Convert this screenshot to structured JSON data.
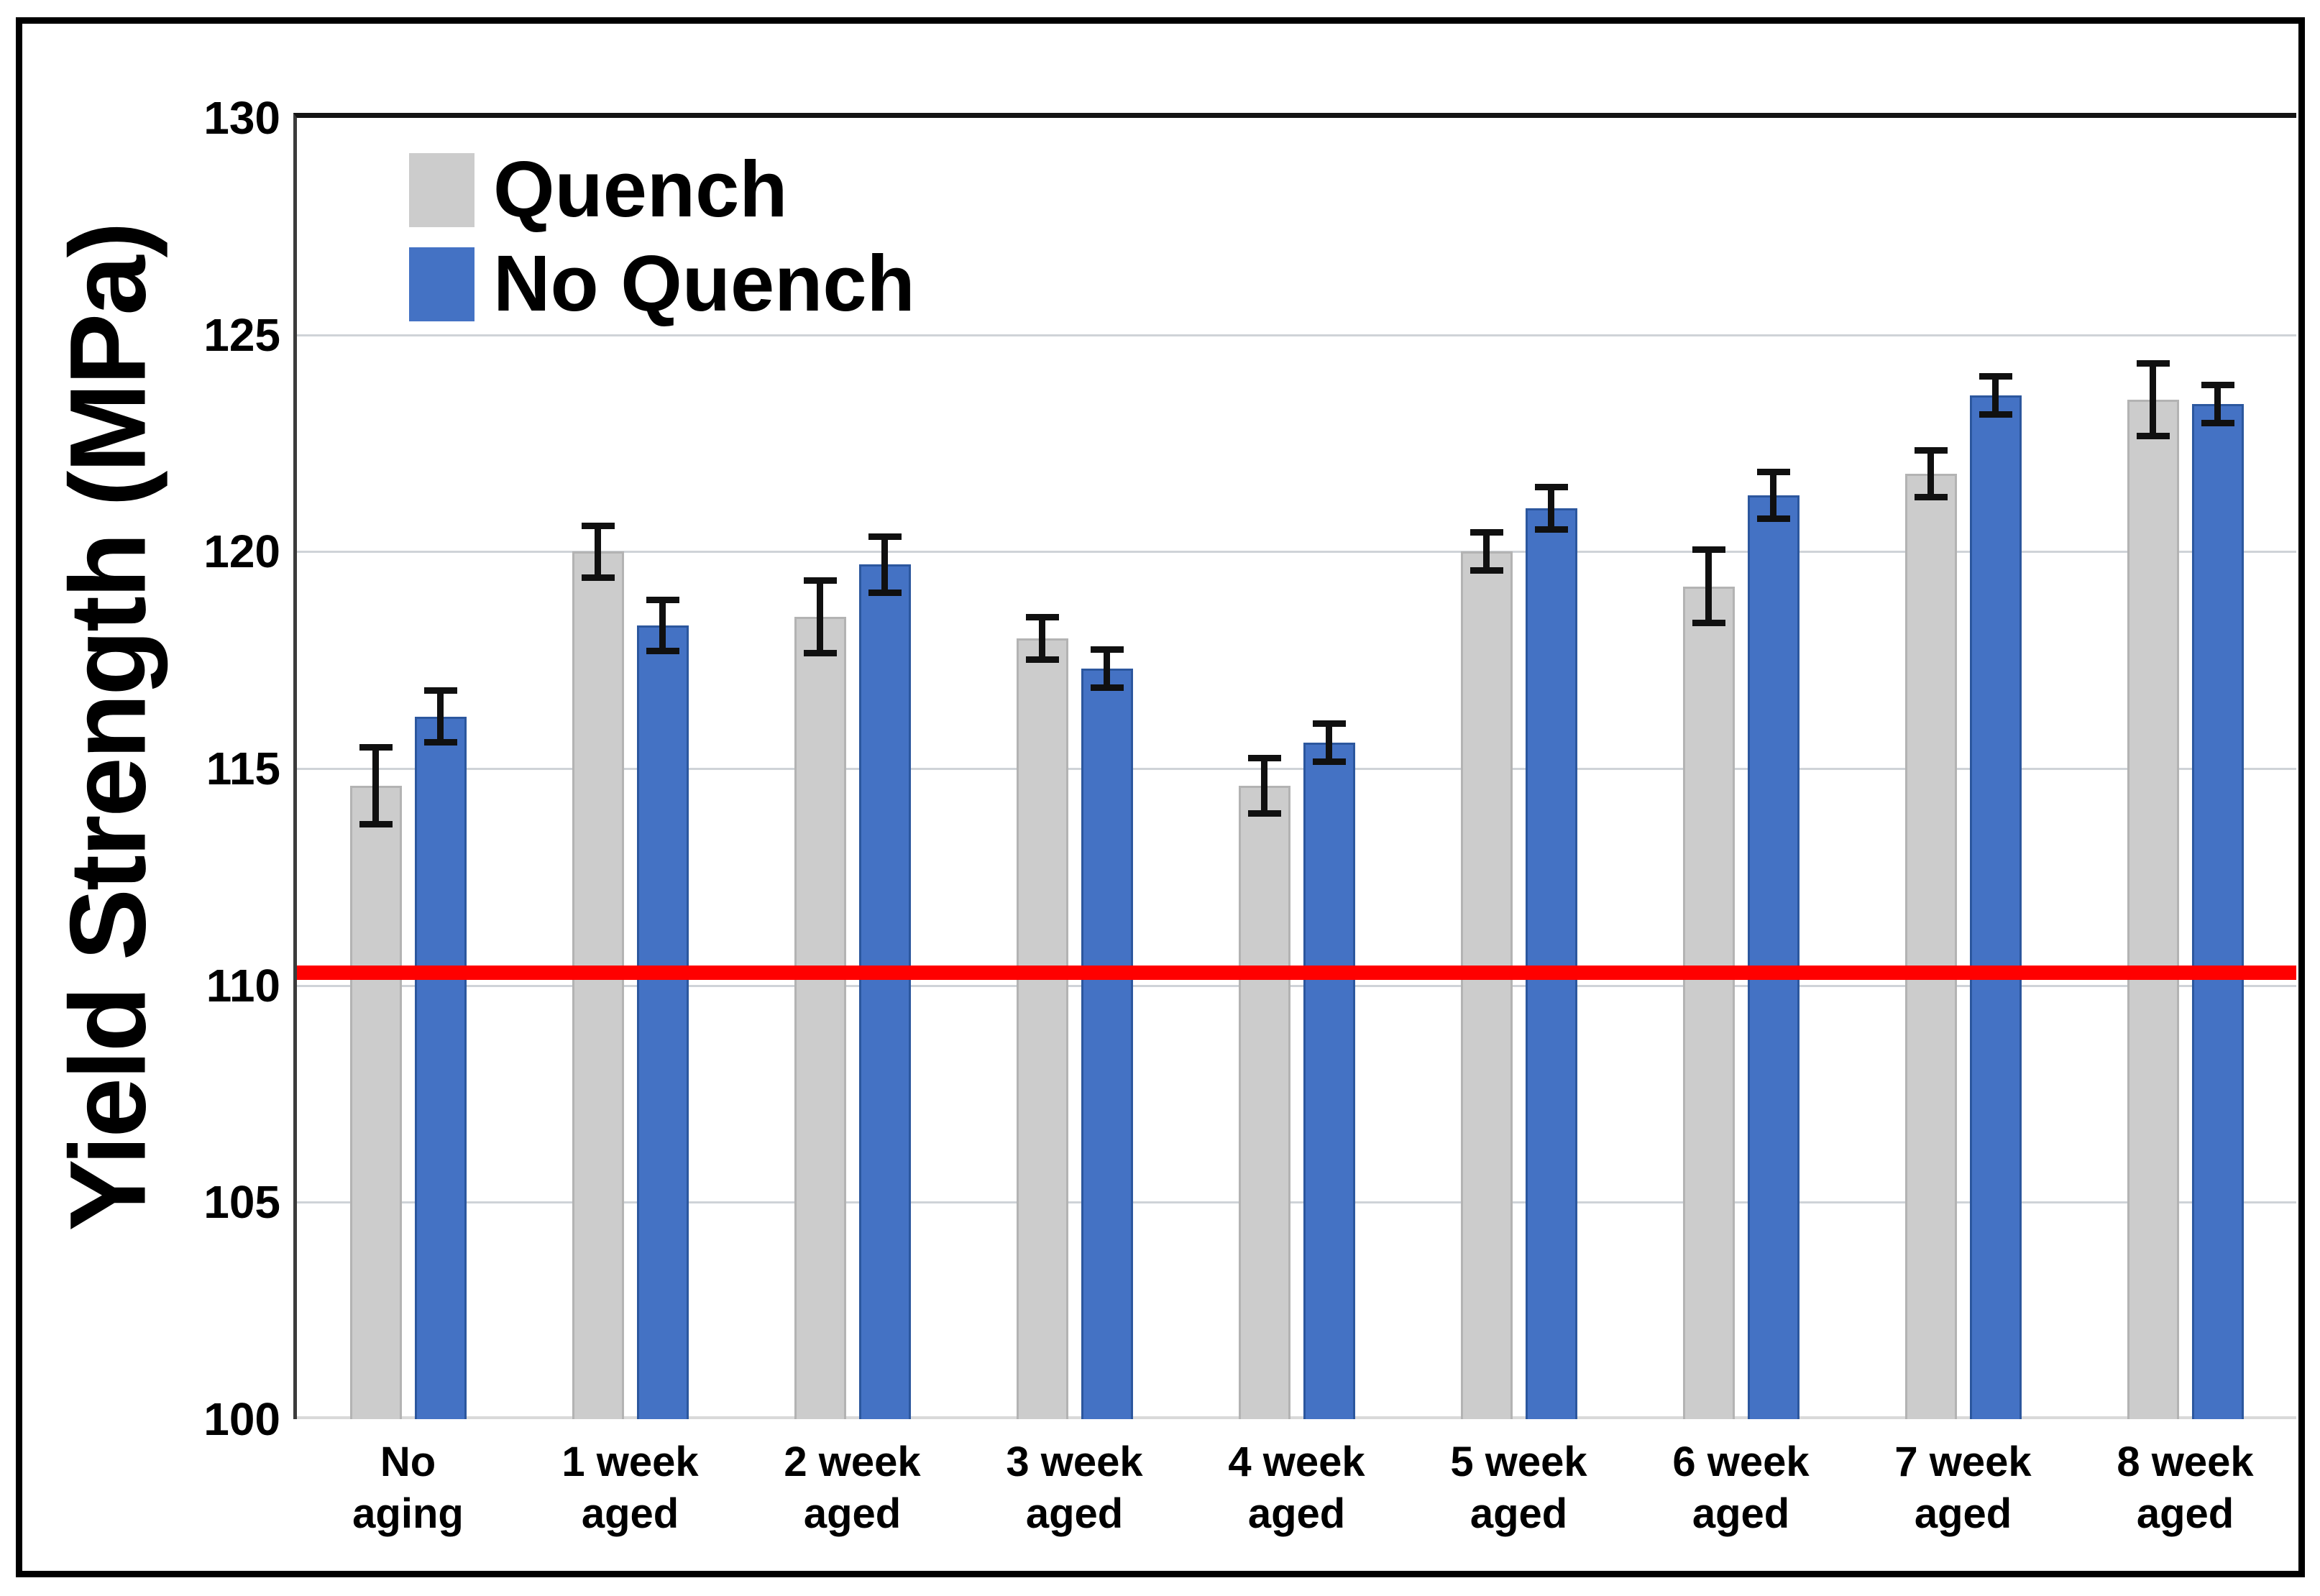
{
  "chart_data": {
    "type": "bar",
    "title": "",
    "ylabel": "Yield Strength (MPa)",
    "xlabel": "",
    "ylim": [
      100,
      130
    ],
    "yticks": [
      130,
      125,
      120,
      115,
      110,
      105,
      100
    ],
    "grid": "horizontal-major",
    "legend_position": "top-left-inside",
    "error_bar_color": "#101010",
    "categories": [
      [
        "No",
        "aging"
      ],
      [
        "1 week",
        "aged"
      ],
      [
        "2 week",
        "aged"
      ],
      [
        "3 week",
        "aged"
      ],
      [
        "4 week",
        "aged"
      ],
      [
        "5 week",
        "aged"
      ],
      [
        "6 week",
        "aged"
      ],
      [
        "7 week",
        "aged"
      ],
      [
        "8 week",
        "aged"
      ]
    ],
    "series": [
      {
        "name": "Quench",
        "color": "#cccccc",
        "border_color": "#b3b3b3",
        "values": [
          114.6,
          120.0,
          118.5,
          118.0,
          114.6,
          120.0,
          119.2,
          121.8,
          123.5
        ],
        "errors": [
          0.9,
          0.6,
          0.85,
          0.5,
          0.65,
          0.45,
          0.85,
          0.55,
          0.85
        ]
      },
      {
        "name": "No Quench",
        "color": "#4472c4",
        "border_color": "#2c579e",
        "values": [
          116.2,
          118.3,
          119.7,
          117.3,
          115.6,
          121.0,
          121.3,
          123.6,
          123.4
        ],
        "errors": [
          0.6,
          0.6,
          0.65,
          0.45,
          0.45,
          0.5,
          0.55,
          0.45,
          0.45
        ]
      }
    ],
    "reference_line": {
      "value": 110.3,
      "color": "#ff0000"
    }
  }
}
